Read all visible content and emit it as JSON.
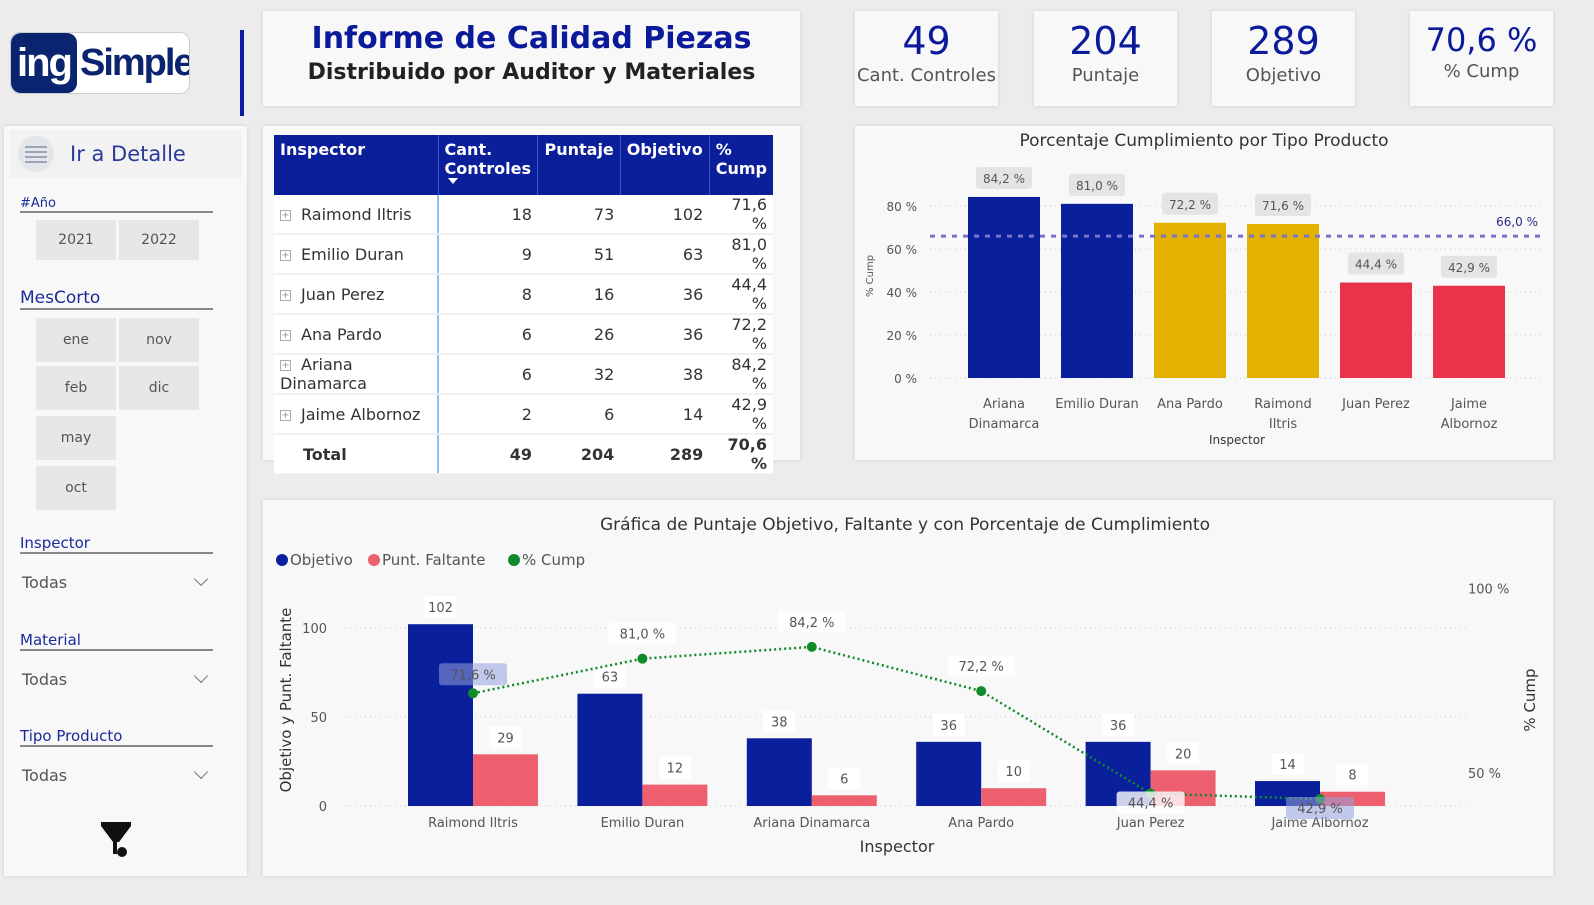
{
  "logo": {
    "text_a": "ing",
    "text_b": "Simple"
  },
  "header": {
    "title": "Informe de Calidad Piezas",
    "subtitle": "Distribuido por Auditor y Materiales"
  },
  "kpis": [
    {
      "value": "49",
      "label": "Cant. Controles"
    },
    {
      "value": "204",
      "label": "Puntaje"
    },
    {
      "value": "289",
      "label": "Objetivo"
    },
    {
      "value": "70,6 %",
      "label": "% Cump"
    }
  ],
  "sidebar": {
    "detail_button": "Ir a Detalle",
    "year": {
      "title": "#Año",
      "options": [
        "2021",
        "2022"
      ]
    },
    "month": {
      "title": "MesCorto",
      "options": [
        "ene",
        "nov",
        "feb",
        "dic",
        "may",
        "oct"
      ]
    },
    "inspector": {
      "title": "Inspector",
      "value": "Todas"
    },
    "material": {
      "title": "Material",
      "value": "Todas"
    },
    "tipo": {
      "title": "Tipo Producto",
      "value": "Todas"
    }
  },
  "table": {
    "headers": [
      "Inspector",
      "Cant. Controles",
      "Puntaje",
      "Objetivo",
      "% Cump"
    ],
    "rows": [
      [
        "Raimond Iltris",
        "18",
        "73",
        "102",
        "71,6 %"
      ],
      [
        "Emilio Duran",
        "9",
        "51",
        "63",
        "81,0 %"
      ],
      [
        "Juan Perez",
        "8",
        "16",
        "36",
        "44,4 %"
      ],
      [
        "Ana Pardo",
        "6",
        "26",
        "36",
        "72,2 %"
      ],
      [
        "Ariana Dinamarca",
        "6",
        "32",
        "38",
        "84,2 %"
      ],
      [
        "Jaime Albornoz",
        "2",
        "6",
        "14",
        "42,9 %"
      ]
    ],
    "total": [
      "Total",
      "49",
      "204",
      "289",
      "70,6 %"
    ]
  },
  "chart_data": [
    {
      "type": "bar",
      "title": "Porcentaje Cumplimiento por Tipo Producto",
      "xlabel": "Inspector",
      "ylabel": "% Cump",
      "categories": [
        [
          "Ariana",
          "Dinamarca"
        ],
        [
          "Emilio Duran"
        ],
        [
          "Ana Pardo"
        ],
        [
          "Raimond",
          "Iltris"
        ],
        [
          "Juan Perez"
        ],
        [
          "Jaime",
          "Albornoz"
        ]
      ],
      "values": [
        84.2,
        81.0,
        72.2,
        71.6,
        44.4,
        42.9
      ],
      "data_labels": [
        "84,2 %",
        "81,0 %",
        "72,2 %",
        "71,6 %",
        "44,4 %",
        "42,9 %"
      ],
      "colors": [
        "#0a1f9c",
        "#0a1f9c",
        "#e3b200",
        "#e3b200",
        "#e8334a",
        "#e8334a"
      ],
      "ylim": [
        0,
        90
      ],
      "yticks": [
        0,
        20,
        40,
        60,
        80
      ],
      "ytick_labels": [
        "0 %",
        "20 %",
        "40 %",
        "60 %",
        "80 %"
      ],
      "reference_line": {
        "value": 66.0,
        "label": "66,0 %",
        "color": "#7b73c8"
      },
      "grid": true
    },
    {
      "type": "bar+line",
      "title": "Gráfica de Puntaje Objetivo, Faltante y con Porcentaje de Cumplimiento",
      "xlabel": "Inspector",
      "ylabel": "Objetivo y Punt. Faltante",
      "y2label": "% Cump",
      "categories": [
        "Raimond Iltris",
        "Emilio Duran",
        "Ariana Dinamarca",
        "Ana Pardo",
        "Juan Perez",
        "Jaime Albornoz"
      ],
      "series": [
        {
          "name": "Objetivo",
          "kind": "bar",
          "color": "#0a1f9c",
          "values": [
            102,
            63,
            38,
            36,
            36,
            14
          ]
        },
        {
          "name": "Punt. Faltante",
          "kind": "bar",
          "color": "#ee6070",
          "values": [
            29,
            12,
            6,
            10,
            20,
            8
          ]
        },
        {
          "name": "% Cump",
          "kind": "line",
          "axis": "right",
          "color": "#118a2a",
          "values": [
            71.6,
            81.0,
            84.2,
            72.2,
            44.4,
            42.9
          ],
          "labels": [
            "71,6 %",
            "81,0 %",
            "84,2 %",
            "72,2 %",
            "44,4 %",
            "42,9 %"
          ]
        }
      ],
      "ylim": [
        0,
        124
      ],
      "yticks": [
        0,
        50,
        100
      ],
      "y2lim": [
        41,
        101
      ],
      "y2ticks": [
        50,
        100
      ],
      "y2tick_labels": [
        "50 %",
        "100 %"
      ],
      "legend": "top-left",
      "grid": true
    }
  ]
}
